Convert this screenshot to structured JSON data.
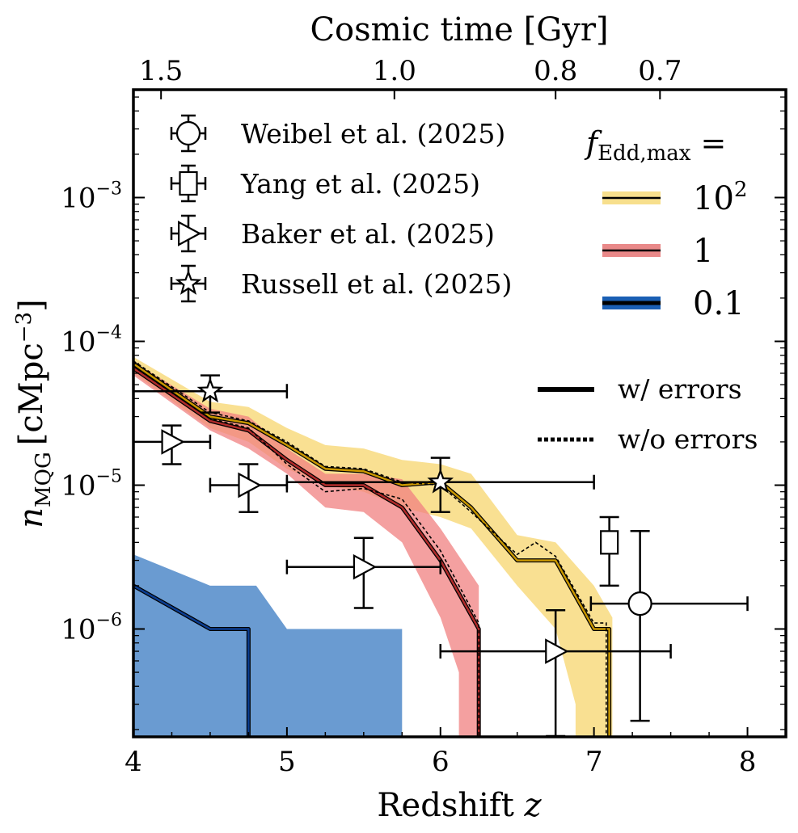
{
  "chart_data": {
    "type": "line",
    "xlabel": "Redshift",
    "xlabel_symbol": "z",
    "ylabel_symbol": "n",
    "ylabel_subscript": "MQG",
    "ylabel_units": "[cMpc",
    "ylabel_units_exp": "−3",
    "ylabel_units_close": "]",
    "top_xlabel": "Cosmic time [Gyr]",
    "xlim": [
      4,
      8.25
    ],
    "ylim_log10": [
      -6.75,
      -2.25
    ],
    "x_ticks": [
      {
        "value": 4,
        "label": "4"
      },
      {
        "value": 5,
        "label": "5"
      },
      {
        "value": 6,
        "label": "6"
      },
      {
        "value": 7,
        "label": "7"
      },
      {
        "value": 8,
        "label": "8"
      }
    ],
    "y_ticks": [
      {
        "log": -3,
        "base": "10",
        "exp": "−3"
      },
      {
        "log": -4,
        "base": "10",
        "exp": "−4"
      },
      {
        "log": -5,
        "base": "10",
        "exp": "−5"
      },
      {
        "log": -6,
        "base": "10",
        "exp": "−6"
      }
    ],
    "top_ticks": [
      {
        "z": 4.18,
        "label": "1.5"
      },
      {
        "z": 5.7,
        "label": "1.0"
      },
      {
        "z": 6.75,
        "label": "0.8"
      },
      {
        "z": 7.43,
        "label": "0.7"
      }
    ],
    "legend_fedd": {
      "title_symbol": "f",
      "title_subscript": "Edd,max",
      "title_suffix": " =",
      "entries": [
        {
          "label": "10",
          "label_exp": "2",
          "fill": "#f5d770",
          "line": "#e0a800"
        },
        {
          "label": "1",
          "fill": "#e36b6b",
          "line": "#c03030"
        },
        {
          "label": "0.1",
          "fill": "#1a5fb4",
          "line": "#0b3d91"
        }
      ]
    },
    "legend_style": [
      {
        "label": "w/ errors",
        "style": "solid"
      },
      {
        "label": "w/o errors",
        "style": "dotted"
      }
    ],
    "legend_obs": [
      {
        "label": "Weibel et al. (2025)",
        "marker": "circle"
      },
      {
        "label": "Yang et al. (2025)",
        "marker": "square"
      },
      {
        "label": "Baker et al. (2025)",
        "marker": "triangle"
      },
      {
        "label": "Russell et al. (2025)",
        "marker": "star"
      }
    ],
    "series": [
      {
        "name": "fEdd,max = 10^2",
        "band_color": "#f7d56e",
        "line_color": "#c99700",
        "median": [
          [
            4,
            7e-05
          ],
          [
            4.5,
            3e-05
          ],
          [
            4.75,
            2.7e-05
          ],
          [
            5.0,
            1.9e-05
          ],
          [
            5.25,
            1.3e-05
          ],
          [
            5.5,
            1.25e-05
          ],
          [
            5.75,
            1e-05
          ],
          [
            6.0,
            1.05e-05
          ],
          [
            6.2,
            7e-06
          ],
          [
            6.5,
            3e-06
          ],
          [
            6.75,
            3e-06
          ],
          [
            7.0,
            1e-06
          ],
          [
            7.1,
            1e-06
          ],
          [
            7.1,
            1.8e-07
          ]
        ],
        "median_noerr": [
          [
            4,
            7.3e-05
          ],
          [
            4.5,
            3.2e-05
          ],
          [
            4.75,
            2.8e-05
          ],
          [
            5.0,
            2e-05
          ],
          [
            5.25,
            1.35e-05
          ],
          [
            5.5,
            1.3e-05
          ],
          [
            5.75,
            1.05e-05
          ],
          [
            6.0,
            1e-05
          ],
          [
            6.2,
            6.5e-06
          ],
          [
            6.5,
            3.3e-06
          ],
          [
            6.62,
            4e-06
          ],
          [
            6.75,
            3.2e-06
          ],
          [
            7.0,
            1.1e-06
          ],
          [
            7.08,
            1.1e-06
          ],
          [
            7.08,
            1.8e-07
          ]
        ],
        "band_upper": [
          [
            4,
            7.8e-05
          ],
          [
            4.5,
            3.8e-05
          ],
          [
            4.75,
            3.5e-05
          ],
          [
            5.0,
            2.5e-05
          ],
          [
            5.25,
            1.9e-05
          ],
          [
            5.5,
            1.8e-05
          ],
          [
            5.75,
            1.5e-05
          ],
          [
            6.0,
            1.4e-05
          ],
          [
            6.2,
            1.2e-05
          ],
          [
            6.5,
            4.5e-06
          ],
          [
            6.75,
            4e-06
          ],
          [
            7.0,
            2e-06
          ],
          [
            7.12,
            1.2e-06
          ],
          [
            7.12,
            1.8e-07
          ]
        ],
        "band_lower": [
          [
            4,
            6e-05
          ],
          [
            4.5,
            2.5e-05
          ],
          [
            4.75,
            2e-05
          ],
          [
            5.0,
            1.3e-05
          ],
          [
            5.25,
            1e-05
          ],
          [
            5.5,
            9e-06
          ],
          [
            5.75,
            7e-06
          ],
          [
            6.0,
            6e-06
          ],
          [
            6.2,
            5e-06
          ],
          [
            6.5,
            2e-06
          ],
          [
            6.75,
            1e-06
          ],
          [
            6.88,
            3e-07
          ],
          [
            6.88,
            1.8e-07
          ]
        ]
      },
      {
        "name": "fEdd,max = 1",
        "band_color": "#f08080",
        "line_color": "#b02a2a",
        "median": [
          [
            4,
            6.5e-05
          ],
          [
            4.5,
            2.8e-05
          ],
          [
            4.75,
            2.4e-05
          ],
          [
            5.0,
            1.5e-05
          ],
          [
            5.25,
            1e-05
          ],
          [
            5.5,
            1e-05
          ],
          [
            5.75,
            7e-06
          ],
          [
            6.0,
            3e-06
          ],
          [
            6.25,
            1e-06
          ],
          [
            6.25,
            1.8e-07
          ]
        ],
        "median_noerr": [
          [
            4,
            6.7e-05
          ],
          [
            4.5,
            2.9e-05
          ],
          [
            4.75,
            2.5e-05
          ],
          [
            5.0,
            1.4e-05
          ],
          [
            5.25,
            9e-06
          ],
          [
            5.5,
            9.5e-06
          ],
          [
            5.75,
            8e-06
          ],
          [
            6.0,
            3.5e-06
          ],
          [
            6.25,
            1.1e-06
          ],
          [
            6.25,
            1.8e-07
          ]
        ],
        "band_upper": [
          [
            4,
            7.2e-05
          ],
          [
            4.5,
            3.4e-05
          ],
          [
            4.75,
            3e-05
          ],
          [
            5.0,
            1.8e-05
          ],
          [
            5.25,
            1.2e-05
          ],
          [
            5.5,
            1.2e-05
          ],
          [
            5.75,
            1.1e-05
          ],
          [
            6.0,
            5e-06
          ],
          [
            6.25,
            2e-06
          ],
          [
            6.25,
            1.8e-07
          ]
        ],
        "band_lower": [
          [
            4,
            5.8e-05
          ],
          [
            4.5,
            2.4e-05
          ],
          [
            4.75,
            1.8e-05
          ],
          [
            5.0,
            1.2e-05
          ],
          [
            5.25,
            7e-06
          ],
          [
            5.5,
            6.5e-06
          ],
          [
            5.75,
            4e-06
          ],
          [
            6.0,
            1.2e-06
          ],
          [
            6.12,
            5e-07
          ],
          [
            6.12,
            1.8e-07
          ]
        ]
      },
      {
        "name": "fEdd,max = 0.1",
        "band_color": "#6a9bd1",
        "line_color": "#0b3d91",
        "median": [
          [
            4,
            2e-06
          ],
          [
            4.5,
            1e-06
          ],
          [
            4.75,
            1e-06
          ],
          [
            4.75,
            1.8e-07
          ]
        ],
        "band_upper": [
          [
            4,
            3.3e-06
          ],
          [
            4.5,
            2e-06
          ],
          [
            4.8,
            2e-06
          ],
          [
            5.0,
            1e-06
          ],
          [
            5.75,
            1e-06
          ],
          [
            5.75,
            1.8e-07
          ]
        ],
        "band_lower": [
          [
            4,
            1.8e-07
          ],
          [
            5.75,
            1.8e-07
          ]
        ]
      }
    ],
    "observations": [
      {
        "group": "Weibel et al. (2025)",
        "marker": "circle",
        "x": 7.3,
        "y": 1.5e-06,
        "xerr": [
          6.98,
          8.0
        ],
        "yerr": [
          2.3e-07,
          4.8e-06
        ]
      },
      {
        "group": "Yang et al. (2025)",
        "marker": "square",
        "x": 7.1,
        "y": 4e-06,
        "xerr": [
          7.1,
          7.1
        ],
        "yerr": [
          2e-06,
          6e-06
        ]
      },
      {
        "group": "Baker et al. (2025)",
        "marker": "triangle",
        "x": 4.25,
        "y": 2e-05,
        "xerr": [
          4.0,
          4.5
        ],
        "yerr": [
          1.4e-05,
          2.6e-05
        ]
      },
      {
        "group": "Baker et al. (2025)",
        "marker": "triangle",
        "x": 4.75,
        "y": 1e-05,
        "xerr": [
          4.5,
          5.0
        ],
        "yerr": [
          6.5e-06,
          1.4e-05
        ]
      },
      {
        "group": "Baker et al. (2025)",
        "marker": "triangle",
        "x": 5.5,
        "y": 2.7e-06,
        "xerr": [
          5.0,
          6.0
        ],
        "yerr": [
          1.4e-06,
          4.3e-06
        ]
      },
      {
        "group": "Baker et al. (2025)",
        "marker": "triangle",
        "x": 6.75,
        "y": 7e-07,
        "xerr": [
          6.0,
          7.5
        ],
        "yerr": [
          1.8e-07,
          1.35e-06
        ]
      },
      {
        "group": "Russell et al. (2025)",
        "marker": "star",
        "x": 4.5,
        "y": 4.5e-05,
        "xerr": [
          4.0,
          5.0
        ],
        "yerr": [
          3.2e-05,
          5.8e-05
        ]
      },
      {
        "group": "Russell et al. (2025)",
        "marker": "star",
        "x": 6.0,
        "y": 1.05e-05,
        "xerr": [
          5.0,
          7.0
        ],
        "yerr": [
          6.5e-06,
          1.55e-05
        ]
      }
    ]
  }
}
